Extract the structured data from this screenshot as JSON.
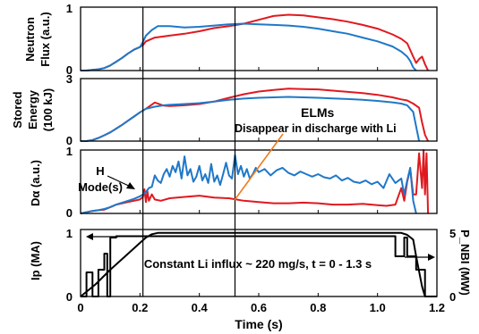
{
  "colors": {
    "red": "#e0191f",
    "blue": "#1f78c8",
    "black": "#000000",
    "arrow": "#f07c1e"
  },
  "chart_data": [
    {
      "type": "line",
      "ylabel": [
        "Neutron",
        "Flux (a.u.)"
      ],
      "ylim": [
        0,
        1
      ],
      "yticks": [
        "0",
        "1"
      ],
      "series": [
        {
          "color": "#e0191f",
          "x": [
            0,
            0.02,
            0.04,
            0.06,
            0.08,
            0.1,
            0.12,
            0.14,
            0.16,
            0.18,
            0.2,
            0.21,
            0.22,
            0.25,
            0.3,
            0.35,
            0.4,
            0.45,
            0.5,
            0.55,
            0.6,
            0.65,
            0.7,
            0.75,
            0.8,
            0.85,
            0.9,
            0.95,
            1.0,
            1.05,
            1.08,
            1.1,
            1.12,
            1.13,
            1.14,
            1.15,
            1.16,
            1.17
          ],
          "y": [
            0,
            0,
            0.01,
            0.02,
            0.04,
            0.08,
            0.14,
            0.2,
            0.27,
            0.33,
            0.37,
            0.4,
            0.46,
            0.52,
            0.55,
            0.58,
            0.62,
            0.67,
            0.7,
            0.74,
            0.8,
            0.86,
            0.88,
            0.87,
            0.84,
            0.81,
            0.77,
            0.72,
            0.66,
            0.57,
            0.5,
            0.43,
            0.22,
            0.12,
            0.18,
            0.22,
            0.1,
            0
          ]
        },
        {
          "color": "#1f78c8",
          "x": [
            0,
            0.02,
            0.04,
            0.06,
            0.08,
            0.1,
            0.12,
            0.14,
            0.16,
            0.18,
            0.2,
            0.21,
            0.22,
            0.24,
            0.26,
            0.3,
            0.35,
            0.4,
            0.45,
            0.5,
            0.55,
            0.6,
            0.65,
            0.7,
            0.75,
            0.8,
            0.85,
            0.9,
            0.95,
            1.0,
            1.05,
            1.08,
            1.1,
            1.11,
            1.12,
            1.13
          ],
          "y": [
            0,
            0,
            0.01,
            0.02,
            0.04,
            0.08,
            0.14,
            0.2,
            0.27,
            0.33,
            0.37,
            0.45,
            0.55,
            0.64,
            0.7,
            0.7,
            0.68,
            0.69,
            0.71,
            0.73,
            0.74,
            0.73,
            0.72,
            0.71,
            0.69,
            0.66,
            0.62,
            0.58,
            0.52,
            0.46,
            0.38,
            0.3,
            0.22,
            0.15,
            0.05,
            0
          ]
        }
      ]
    },
    {
      "type": "line",
      "ylabel": [
        "Stored",
        "Energy",
        "(100 kJ)"
      ],
      "ylim": [
        0,
        3
      ],
      "yticks": [
        "0",
        "3"
      ],
      "series": [
        {
          "color": "#e0191f",
          "x": [
            0,
            0.02,
            0.04,
            0.06,
            0.08,
            0.1,
            0.12,
            0.14,
            0.16,
            0.18,
            0.2,
            0.22,
            0.25,
            0.28,
            0.3,
            0.35,
            0.4,
            0.45,
            0.5,
            0.55,
            0.6,
            0.65,
            0.7,
            0.75,
            0.8,
            0.85,
            0.9,
            0.95,
            1.0,
            1.05,
            1.08,
            1.1,
            1.12,
            1.14,
            1.15,
            1.16,
            1.17
          ],
          "y": [
            0,
            0,
            0.05,
            0.15,
            0.28,
            0.42,
            0.6,
            0.78,
            0.98,
            1.18,
            1.38,
            1.55,
            1.85,
            1.7,
            1.68,
            1.72,
            1.78,
            1.9,
            2.08,
            2.25,
            2.38,
            2.45,
            2.52,
            2.5,
            2.48,
            2.42,
            2.36,
            2.3,
            2.22,
            2.1,
            2.0,
            1.95,
            1.8,
            1.6,
            0.9,
            0.3,
            0
          ]
        },
        {
          "color": "#1f78c8",
          "x": [
            0,
            0.02,
            0.04,
            0.06,
            0.08,
            0.1,
            0.12,
            0.14,
            0.16,
            0.18,
            0.2,
            0.22,
            0.25,
            0.28,
            0.3,
            0.35,
            0.4,
            0.45,
            0.5,
            0.55,
            0.6,
            0.65,
            0.7,
            0.75,
            0.8,
            0.85,
            0.9,
            0.95,
            1.0,
            1.05,
            1.08,
            1.1,
            1.12,
            1.13,
            1.14
          ],
          "y": [
            0,
            0,
            0.05,
            0.15,
            0.28,
            0.42,
            0.6,
            0.78,
            0.98,
            1.18,
            1.38,
            1.55,
            1.65,
            1.72,
            1.74,
            1.78,
            1.82,
            1.9,
            1.98,
            2.04,
            2.08,
            2.1,
            2.12,
            2.1,
            2.08,
            2.05,
            2.02,
            1.98,
            1.93,
            1.86,
            1.8,
            1.72,
            1.4,
            0.7,
            0
          ]
        }
      ]
    },
    {
      "type": "line",
      "ylabel": [
        "Dα (a.u.)"
      ],
      "ylim": [
        0,
        1
      ],
      "yticks": [
        "0",
        "1"
      ],
      "series": [
        {
          "color": "#e0191f",
          "x": [
            0,
            0.02,
            0.04,
            0.06,
            0.08,
            0.1,
            0.12,
            0.14,
            0.16,
            0.18,
            0.2,
            0.21,
            0.215,
            0.22,
            0.225,
            0.23,
            0.24,
            0.25,
            0.27,
            0.3,
            0.35,
            0.4,
            0.45,
            0.5,
            0.55,
            0.6,
            0.65,
            0.7,
            0.75,
            0.8,
            0.85,
            0.9,
            0.95,
            1.0,
            1.03,
            1.06,
            1.08,
            1.09,
            1.1,
            1.11,
            1.12,
            1.13,
            1.14,
            1.15,
            1.155,
            1.16,
            1.165,
            1.17
          ],
          "y": [
            0,
            0.02,
            0.04,
            0.05,
            0.06,
            0.1,
            0.14,
            0.16,
            0.18,
            0.2,
            0.22,
            0.26,
            0.38,
            0.18,
            0.35,
            0.2,
            0.3,
            0.22,
            0.2,
            0.24,
            0.26,
            0.28,
            0.25,
            0.24,
            0.2,
            0.18,
            0.16,
            0.16,
            0.17,
            0.16,
            0.14,
            0.14,
            0.15,
            0.13,
            0.12,
            0.14,
            0.4,
            0.2,
            0.5,
            0.7,
            0.3,
            0.3,
            0.95,
            0.4,
            1.0,
            0.3,
            0.95,
            0
          ]
        },
        {
          "color": "#1f78c8",
          "x": [
            0,
            0.02,
            0.04,
            0.06,
            0.08,
            0.1,
            0.12,
            0.14,
            0.16,
            0.18,
            0.2,
            0.21,
            0.22,
            0.23,
            0.24,
            0.25,
            0.26,
            0.27,
            0.28,
            0.29,
            0.3,
            0.31,
            0.32,
            0.33,
            0.34,
            0.35,
            0.36,
            0.37,
            0.38,
            0.39,
            0.4,
            0.41,
            0.42,
            0.43,
            0.44,
            0.45,
            0.46,
            0.47,
            0.48,
            0.49,
            0.5,
            0.51,
            0.52,
            0.53,
            0.54,
            0.55,
            0.56,
            0.57,
            0.58,
            0.59,
            0.6,
            0.62,
            0.64,
            0.66,
            0.68,
            0.7,
            0.72,
            0.74,
            0.76,
            0.78,
            0.8,
            0.82,
            0.84,
            0.86,
            0.88,
            0.9,
            0.92,
            0.94,
            0.96,
            0.98,
            1.0,
            1.02,
            1.04,
            1.06,
            1.08,
            1.09,
            1.1,
            1.11,
            1.12,
            1.13
          ],
          "y": [
            0,
            0.02,
            0.04,
            0.05,
            0.07,
            0.1,
            0.14,
            0.17,
            0.2,
            0.23,
            0.27,
            0.3,
            0.34,
            0.4,
            0.42,
            0.6,
            0.52,
            0.48,
            0.62,
            0.7,
            0.58,
            0.75,
            0.65,
            0.82,
            0.55,
            0.9,
            0.6,
            0.7,
            0.5,
            0.58,
            0.75,
            0.52,
            0.62,
            0.48,
            0.78,
            0.5,
            0.6,
            0.45,
            0.62,
            0.8,
            0.6,
            0.55,
            0.92,
            0.62,
            0.75,
            0.58,
            0.7,
            0.55,
            0.62,
            0.72,
            0.65,
            0.7,
            0.6,
            0.68,
            0.72,
            0.64,
            0.6,
            0.66,
            0.62,
            0.58,
            0.62,
            0.57,
            0.55,
            0.6,
            0.52,
            0.56,
            0.5,
            0.48,
            0.52,
            0.46,
            0.5,
            0.4,
            0.62,
            0.48,
            0.55,
            0.3,
            0.52,
            0.72,
            0.2,
            0
          ]
        }
      ]
    },
    {
      "type": "line",
      "ylabel": [
        "Ip (MA)"
      ],
      "y2label": "P_NBI (MW)",
      "ylim": [
        0,
        1
      ],
      "yticks": [
        "0",
        "1"
      ],
      "y2lim": [
        0,
        5
      ],
      "y2ticks": [
        "0",
        "5"
      ],
      "annotation": "Constant Li influx ~ 220 mg/s, t = 0 - 1.3 s",
      "series": [
        {
          "name": "Ip",
          "color": "#000000",
          "x": [
            0,
            0.05,
            0.1,
            0.15,
            0.2,
            0.22,
            0.24,
            0.26,
            0.3,
            0.4,
            0.5,
            0.6,
            0.7,
            0.8,
            0.9,
            1.0,
            1.05,
            1.08,
            1.1,
            1.12,
            1.13,
            1.15,
            1.16
          ],
          "y": [
            0,
            0.18,
            0.4,
            0.6,
            0.8,
            0.88,
            0.93,
            0.95,
            0.95,
            0.95,
            0.95,
            0.95,
            0.95,
            0.95,
            0.95,
            0.95,
            0.95,
            0.95,
            0.92,
            0.85,
            0.6,
            0.15,
            0
          ]
        },
        {
          "name": "P_NBI",
          "color": "#000000",
          "x": [
            0,
            0.02,
            0.02,
            0.04,
            0.04,
            0.06,
            0.06,
            0.08,
            0.08,
            0.09,
            0.09,
            0.1,
            0.1,
            0.12,
            0.12,
            1.06,
            1.06,
            1.09,
            1.09,
            1.1,
            1.1,
            1.13,
            1.13,
            1.16,
            1.16,
            1.2
          ],
          "y": [
            0,
            0,
            1.8,
            1.8,
            0,
            0,
            2.0,
            2.0,
            3.2,
            3.2,
            0,
            0,
            4.4,
            4.4,
            4.5,
            4.5,
            3.0,
            3.0,
            4.4,
            4.4,
            3.0,
            3.0,
            2.0,
            2.0,
            0,
            0
          ]
        }
      ]
    }
  ],
  "xaxis": {
    "label": "Time (s)",
    "lim": [
      0,
      1.2
    ],
    "ticks": [
      "0",
      "0.2",
      "0.4",
      "0.6",
      "0.8",
      "1.0",
      "1.2"
    ],
    "tick_values": [
      0,
      0.2,
      0.4,
      0.6,
      0.8,
      1.0,
      1.2
    ]
  },
  "markers": {
    "vlines": [
      0.21,
      0.52
    ]
  },
  "annotations": {
    "elms_title": "ELMs",
    "elms_text": "Disappear in discharge with Li",
    "hmode": [
      "H",
      "Mode(s)"
    ]
  }
}
